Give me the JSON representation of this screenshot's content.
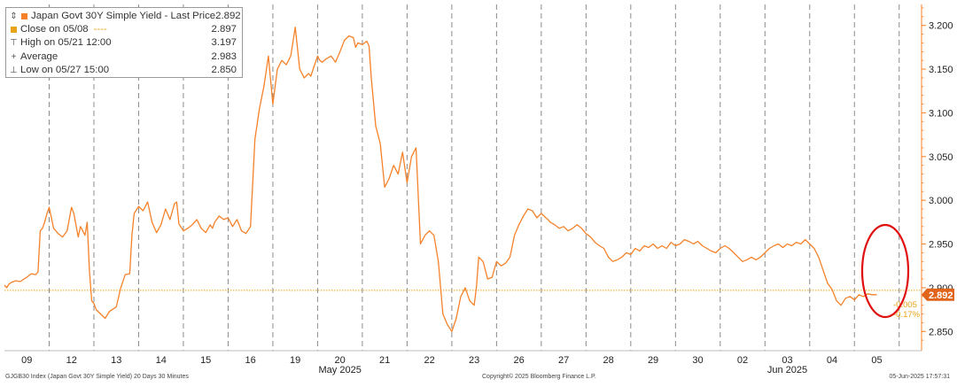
{
  "legend": {
    "title": "Japan Govt 30Y Simple Yield - Last Price",
    "title_value": "2.892",
    "close_label": "Close on 05/08",
    "close_dashes": "----",
    "close_value": "2.897",
    "high_label": "High on 05/21 12:00",
    "high_value": "3.197",
    "avg_label": "Average",
    "avg_value": "2.983",
    "low_label": "Low on 05/27 15:00",
    "low_value": "2.850"
  },
  "footer": {
    "left": "GJGB30 Index (Japan Govt 30Y Simple Yield) 20 Days 30 Minutes",
    "center": "Copyright© 2025 Bloomberg Finance L.P.",
    "right": "05-Jun-2025 17:57:31"
  },
  "colors": {
    "line": "#f5822a",
    "close_line": "#e8a317",
    "last_tag": "#e0651a",
    "circle": "#e01010",
    "axis_text": "#222222",
    "grid": "#8a8a8a"
  },
  "chart_data": {
    "type": "line",
    "title": "Japan Govt 30Y Simple Yield",
    "last_price": 2.892,
    "last_tag": "2.892",
    "change_abs": "-0.005",
    "change_pct": "-0.17%",
    "close_ref": 2.897,
    "grid": true,
    "ylim": [
      2.828,
      3.224
    ],
    "y_ticks": [
      2.85,
      2.9,
      2.95,
      3.0,
      3.05,
      3.1,
      3.15,
      3.2
    ],
    "y_tick_labels": [
      "2.850",
      "2.900",
      "2.950",
      "3.000",
      "3.050",
      "3.100",
      "3.150",
      "3.200"
    ],
    "x_day_labels": [
      "09",
      "12",
      "13",
      "14",
      "15",
      "16",
      "19",
      "20",
      "21",
      "22",
      "23",
      "26",
      "27",
      "28",
      "29",
      "30",
      "02",
      "03",
      "04",
      "05"
    ],
    "x_month_labels": [
      {
        "label": "May 2025",
        "at_day": 7.5
      },
      {
        "label": "Jun 2025",
        "at_day": 17.5
      }
    ],
    "annotation": "red ellipse highlighting latest session (05)",
    "x": [
      0.0,
      0.05,
      0.1,
      0.15,
      0.25,
      0.35,
      0.5,
      0.6,
      0.7,
      0.75,
      0.8,
      0.85,
      0.9,
      0.95,
      1.0,
      1.05,
      1.1,
      1.2,
      1.3,
      1.4,
      1.5,
      1.55,
      1.65,
      1.7,
      1.75,
      1.8,
      1.85,
      1.9,
      1.95,
      2.0,
      2.05,
      2.15,
      2.25,
      2.35,
      2.5,
      2.6,
      2.7,
      2.8,
      2.85,
      2.9,
      3.0,
      3.1,
      3.2,
      3.3,
      3.4,
      3.5,
      3.6,
      3.7,
      3.8,
      3.85,
      3.9,
      4.0,
      4.1,
      4.2,
      4.3,
      4.4,
      4.5,
      4.6,
      4.65,
      4.7,
      4.8,
      4.9,
      5.0,
      5.1,
      5.2,
      5.3,
      5.4,
      5.5,
      5.6,
      5.7,
      5.8,
      5.9,
      6.0,
      6.1,
      6.2,
      6.3,
      6.4,
      6.5,
      6.6,
      6.7,
      6.8,
      6.85,
      6.9,
      7.0,
      7.05,
      7.1,
      7.2,
      7.3,
      7.4,
      7.5,
      7.6,
      7.7,
      7.8,
      7.85,
      7.9,
      8.0,
      8.1,
      8.15,
      8.2,
      8.3,
      8.4,
      8.5,
      8.6,
      8.7,
      8.8,
      8.9,
      9.0,
      9.1,
      9.2,
      9.3,
      9.4,
      9.5,
      9.6,
      9.7,
      9.8,
      9.9,
      10.0,
      10.1,
      10.2,
      10.3,
      10.4,
      10.5,
      10.55,
      10.6,
      10.7,
      10.8,
      10.9,
      11.0,
      11.1,
      11.2,
      11.3,
      11.4,
      11.5,
      11.6,
      11.7,
      11.8,
      11.9,
      12.0,
      12.1,
      12.15,
      12.2,
      12.3,
      12.4,
      12.5,
      12.6,
      12.7,
      12.8,
      12.9,
      13.0,
      13.1,
      13.2,
      13.3,
      13.4,
      13.5,
      13.6,
      13.7,
      13.8,
      13.9,
      14.0,
      14.1,
      14.2,
      14.3,
      14.4,
      14.5,
      14.6,
      14.7,
      14.8,
      14.9,
      15.0,
      15.1,
      15.2,
      15.3,
      15.4,
      15.5,
      15.6,
      15.7,
      15.8,
      15.9,
      16.0,
      16.1,
      16.2,
      16.3,
      16.4,
      16.5,
      16.6,
      16.7,
      16.8,
      16.9,
      17.0,
      17.1,
      17.2,
      17.3,
      17.4,
      17.5,
      17.6,
      17.7,
      17.8,
      17.9,
      18.0,
      18.1,
      18.2,
      18.3,
      18.4,
      18.5,
      18.6,
      18.7,
      18.8,
      18.9,
      19.0,
      19.1,
      19.2,
      19.3,
      19.4,
      19.5
    ],
    "y": [
      2.903,
      2.9,
      2.904,
      2.906,
      2.908,
      2.907,
      2.912,
      2.916,
      2.915,
      2.918,
      2.965,
      2.968,
      2.975,
      2.985,
      2.992,
      2.98,
      2.968,
      2.962,
      2.958,
      2.965,
      2.992,
      2.985,
      2.958,
      2.97,
      2.965,
      2.96,
      2.975,
      2.92,
      2.885,
      2.882,
      2.875,
      2.87,
      2.865,
      2.873,
      2.878,
      2.9,
      2.915,
      2.916,
      2.96,
      2.985,
      2.993,
      2.988,
      2.998,
      2.975,
      2.963,
      2.972,
      2.99,
      2.978,
      2.996,
      2.998,
      2.973,
      2.965,
      2.968,
      2.972,
      2.978,
      2.968,
      2.963,
      2.972,
      2.968,
      2.975,
      2.982,
      2.978,
      2.98,
      2.97,
      2.978,
      2.965,
      2.962,
      2.97,
      3.07,
      3.105,
      3.13,
      3.165,
      3.11,
      3.15,
      3.16,
      3.155,
      3.165,
      3.198,
      3.15,
      3.14,
      3.145,
      3.142,
      3.15,
      3.165,
      3.16,
      3.158,
      3.162,
      3.165,
      3.158,
      3.17,
      3.183,
      3.188,
      3.186,
      3.175,
      3.18,
      3.178,
      3.182,
      3.176,
      3.14,
      3.085,
      3.065,
      3.015,
      3.025,
      3.04,
      3.03,
      3.055,
      3.02,
      3.05,
      3.06,
      2.95,
      2.96,
      2.965,
      2.96,
      2.93,
      2.87,
      2.858,
      2.85,
      2.865,
      2.89,
      2.9,
      2.885,
      2.88,
      2.9,
      2.935,
      2.93,
      2.91,
      2.912,
      2.93,
      2.925,
      2.928,
      2.935,
      2.96,
      2.972,
      2.982,
      2.99,
      2.988,
      2.98,
      2.985,
      2.98,
      2.978,
      2.975,
      2.972,
      2.968,
      2.97,
      2.965,
      2.968,
      2.972,
      2.968,
      2.962,
      2.958,
      2.952,
      2.948,
      2.945,
      2.935,
      2.93,
      2.932,
      2.935,
      2.94,
      2.938,
      2.945,
      2.942,
      2.948,
      2.946,
      2.95,
      2.945,
      2.948,
      2.945,
      2.952,
      2.948,
      2.95,
      2.955,
      2.953,
      2.95,
      2.953,
      2.948,
      2.945,
      2.942,
      2.94,
      2.945,
      2.948,
      2.945,
      2.94,
      2.935,
      2.93,
      2.932,
      2.935,
      2.932,
      2.935,
      2.94,
      2.945,
      2.948,
      2.95,
      2.946,
      2.95,
      2.948,
      2.952,
      2.95,
      2.955,
      2.95,
      2.945,
      2.935,
      2.92,
      2.905,
      2.898,
      2.885,
      2.88,
      2.888,
      2.89,
      2.886,
      2.892,
      2.89,
      2.893,
      2.892,
      2.892
    ]
  }
}
